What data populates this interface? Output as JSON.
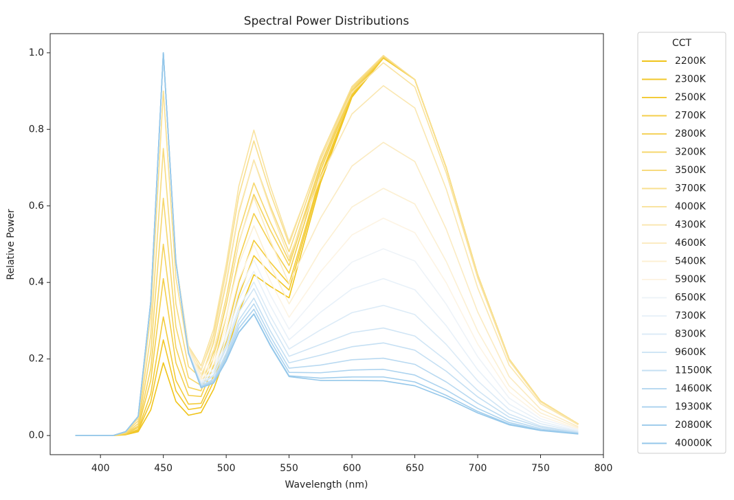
{
  "chart_data": {
    "type": "line",
    "title": "Spectral Power Distributions",
    "xlabel": "Wavelength (nm)",
    "ylabel": "Relative Power",
    "legend_title": "CCT",
    "legend": "outside-right",
    "xlim": [
      360,
      800
    ],
    "ylim": [
      -0.05,
      1.05
    ],
    "xticks": [
      400,
      450,
      500,
      550,
      600,
      650,
      700,
      750,
      800
    ],
    "yticks": [
      {
        "value": 0,
        "label": "0.0"
      },
      0.2,
      0.4,
      0.6,
      0.8,
      {
        "value": 1,
        "label": "1.0"
      }
    ],
    "x": [
      380,
      410,
      420,
      430,
      440,
      450,
      460,
      470,
      480,
      490,
      500,
      510,
      522,
      535,
      550,
      575,
      600,
      625,
      650,
      675,
      700,
      725,
      750,
      780
    ],
    "series": [
      {
        "name": "2200K",
        "color": "#f0c419",
        "values": [
          0,
          0,
          0.002,
          0.01,
          0.067,
          0.19,
          0.089,
          0.053,
          0.06,
          0.121,
          0.212,
          0.321,
          0.42,
          0.39,
          0.36,
          0.66,
          0.884,
          0.986,
          0.93,
          0.7,
          0.42,
          0.2,
          0.09,
          0.03
        ]
      },
      {
        "name": "2300K",
        "color": "#f2c72a",
        "values": [
          0,
          0,
          0.003,
          0.013,
          0.088,
          0.25,
          0.117,
          0.068,
          0.073,
          0.141,
          0.243,
          0.365,
          0.47,
          0.425,
          0.38,
          0.67,
          0.888,
          0.987,
          0.93,
          0.7,
          0.42,
          0.2,
          0.09,
          0.03
        ]
      },
      {
        "name": "2500K",
        "color": "#f3cb3a",
        "values": [
          0,
          0,
          0.003,
          0.016,
          0.109,
          0.31,
          0.144,
          0.082,
          0.084,
          0.156,
          0.267,
          0.399,
          0.51,
          0.453,
          0.396,
          0.678,
          0.891,
          0.988,
          0.93,
          0.7,
          0.42,
          0.2,
          0.09,
          0.03
        ]
      },
      {
        "name": "2700K",
        "color": "#f4cf4b",
        "values": [
          0,
          0,
          0.004,
          0.021,
          0.144,
          0.41,
          0.19,
          0.105,
          0.102,
          0.183,
          0.31,
          0.46,
          0.58,
          0.502,
          0.424,
          0.692,
          0.897,
          0.989,
          0.93,
          0.7,
          0.42,
          0.2,
          0.09,
          0.03
        ]
      },
      {
        "name": "2800K",
        "color": "#f5d35c",
        "values": [
          0,
          0,
          0.005,
          0.025,
          0.175,
          0.5,
          0.23,
          0.126,
          0.117,
          0.204,
          0.341,
          0.504,
          0.63,
          0.537,
          0.444,
          0.702,
          0.901,
          0.99,
          0.93,
          0.7,
          0.42,
          0.2,
          0.09,
          0.03
        ]
      },
      {
        "name": "3200K",
        "color": "#f6d76d",
        "values": [
          0,
          0,
          0.006,
          0.031,
          0.217,
          0.62,
          0.284,
          0.151,
          0.131,
          0.218,
          0.36,
          0.53,
          0.66,
          0.558,
          0.456,
          0.708,
          0.903,
          0.991,
          0.93,
          0.7,
          0.42,
          0.2,
          0.09,
          0.03
        ]
      },
      {
        "name": "3500K",
        "color": "#f7db7e",
        "values": [
          0,
          0,
          0.008,
          0.038,
          0.263,
          0.75,
          0.344,
          0.18,
          0.15,
          0.243,
          0.398,
          0.582,
          0.72,
          0.6,
          0.48,
          0.72,
          0.908,
          0.992,
          0.93,
          0.7,
          0.42,
          0.2,
          0.09,
          0.03
        ]
      },
      {
        "name": "3700K",
        "color": "#f8df8f",
        "values": [
          0,
          0,
          0.009,
          0.045,
          0.315,
          0.9,
          0.412,
          0.213,
          0.17,
          0.265,
          0.429,
          0.626,
          0.77,
          0.635,
          0.5,
          0.73,
          0.912,
          0.993,
          0.93,
          0.7,
          0.42,
          0.2,
          0.09,
          0.03
        ]
      },
      {
        "name": "4000K",
        "color": "#f9e3a0",
        "values": [
          0,
          0,
          0.01,
          0.05,
          0.35,
          1,
          0.457,
          0.234,
          0.182,
          0.278,
          0.447,
          0.651,
          0.798,
          0.652,
          0.507,
          0.724,
          0.897,
          0.974,
          0.911,
          0.686,
          0.412,
          0.196,
          0.088,
          0.029
        ]
      },
      {
        "name": "4300K",
        "color": "#fae7b1",
        "values": [
          0,
          0,
          0.01,
          0.05,
          0.35,
          1,
          0.456,
          0.231,
          0.172,
          0.253,
          0.404,
          0.586,
          0.72,
          0.593,
          0.465,
          0.674,
          0.84,
          0.914,
          0.856,
          0.644,
          0.386,
          0.184,
          0.083,
          0.028
        ]
      },
      {
        "name": "4600K",
        "color": "#fbebc2",
        "values": [
          0,
          0,
          0.01,
          0.05,
          0.35,
          1,
          0.455,
          0.227,
          0.16,
          0.224,
          0.351,
          0.507,
          0.622,
          0.51,
          0.397,
          0.568,
          0.704,
          0.766,
          0.716,
          0.539,
          0.323,
          0.154,
          0.069,
          0.023
        ]
      },
      {
        "name": "5400K",
        "color": "#fcf0d3",
        "values": [
          0,
          0,
          0.01,
          0.05,
          0.35,
          1,
          0.455,
          0.224,
          0.151,
          0.202,
          0.312,
          0.448,
          0.548,
          0.446,
          0.344,
          0.484,
          0.597,
          0.646,
          0.605,
          0.455,
          0.273,
          0.13,
          0.059,
          0.02
        ]
      },
      {
        "name": "5900K",
        "color": "#fdf4e4",
        "values": [
          0,
          0,
          0.01,
          0.05,
          0.35,
          1,
          0.454,
          0.222,
          0.145,
          0.187,
          0.285,
          0.408,
          0.498,
          0.404,
          0.309,
          0.428,
          0.524,
          0.568,
          0.53,
          0.399,
          0.239,
          0.114,
          0.051,
          0.017
        ]
      },
      {
        "name": "6500K",
        "color": "#eef3f8",
        "values": [
          0,
          0,
          0.01,
          0.05,
          0.35,
          1,
          0.454,
          0.22,
          0.14,
          0.175,
          0.265,
          0.377,
          0.459,
          0.368,
          0.278,
          0.374,
          0.453,
          0.488,
          0.456,
          0.343,
          0.206,
          0.098,
          0.044,
          0.015
        ]
      },
      {
        "name": "7300K",
        "color": "#e8f1f9",
        "values": [
          0,
          0,
          0.01,
          0.05,
          0.35,
          1,
          0.454,
          0.219,
          0.137,
          0.167,
          0.25,
          0.356,
          0.429,
          0.34,
          0.25,
          0.322,
          0.383,
          0.41,
          0.381,
          0.287,
          0.172,
          0.082,
          0.037,
          0.012
        ]
      },
      {
        "name": "8300K",
        "color": "#dcebf7",
        "values": [
          0,
          0,
          0.01,
          0.05,
          0.35,
          1,
          0.454,
          0.218,
          0.134,
          0.159,
          0.236,
          0.333,
          0.401,
          0.313,
          0.226,
          0.276,
          0.321,
          0.34,
          0.316,
          0.238,
          0.143,
          0.068,
          0.031,
          0.01
        ]
      },
      {
        "name": "9600K",
        "color": "#d0e5f5",
        "values": [
          0,
          0,
          0.01,
          0.05,
          0.35,
          1,
          0.454,
          0.218,
          0.133,
          0.156,
          0.228,
          0.322,
          0.384,
          0.295,
          0.207,
          0.238,
          0.269,
          0.281,
          0.26,
          0.196,
          0.118,
          0.056,
          0.025,
          0.008
        ]
      },
      {
        "name": "11500K",
        "color": "#c4dff3",
        "values": [
          0,
          0,
          0.01,
          0.05,
          0.35,
          1,
          0.453,
          0.217,
          0.13,
          0.148,
          0.215,
          0.301,
          0.359,
          0.274,
          0.19,
          0.21,
          0.232,
          0.242,
          0.223,
          0.168,
          0.101,
          0.048,
          0.022,
          0.007
        ]
      },
      {
        "name": "14600K",
        "color": "#b8d9f1",
        "values": [
          0,
          0,
          0.01,
          0.05,
          0.35,
          1,
          0.453,
          0.216,
          0.128,
          0.144,
          0.208,
          0.29,
          0.344,
          0.26,
          0.176,
          0.184,
          0.198,
          0.202,
          0.186,
          0.14,
          0.084,
          0.04,
          0.018,
          0.006
        ]
      },
      {
        "name": "19300K",
        "color": "#acd3ef",
        "values": [
          0,
          0,
          0.01,
          0.05,
          0.35,
          1,
          0.453,
          0.216,
          0.127,
          0.141,
          0.201,
          0.28,
          0.33,
          0.248,
          0.165,
          0.164,
          0.171,
          0.173,
          0.158,
          0.119,
          0.071,
          0.034,
          0.015,
          0.005
        ]
      },
      {
        "name": "20800K",
        "color": "#a0cdec",
        "values": [
          0,
          0,
          0.01,
          0.05,
          0.35,
          1,
          0.453,
          0.215,
          0.125,
          0.137,
          0.195,
          0.27,
          0.318,
          0.237,
          0.156,
          0.15,
          0.153,
          0.153,
          0.14,
          0.105,
          0.063,
          0.03,
          0.014,
          0.005
        ]
      },
      {
        "name": "40000K",
        "color": "#94c7ea",
        "values": [
          0,
          0,
          0.01,
          0.05,
          0.35,
          1,
          0.453,
          0.215,
          0.125,
          0.137,
          0.195,
          0.269,
          0.317,
          0.235,
          0.154,
          0.144,
          0.144,
          0.143,
          0.13,
          0.098,
          0.059,
          0.028,
          0.013,
          0.004
        ]
      }
    ]
  }
}
